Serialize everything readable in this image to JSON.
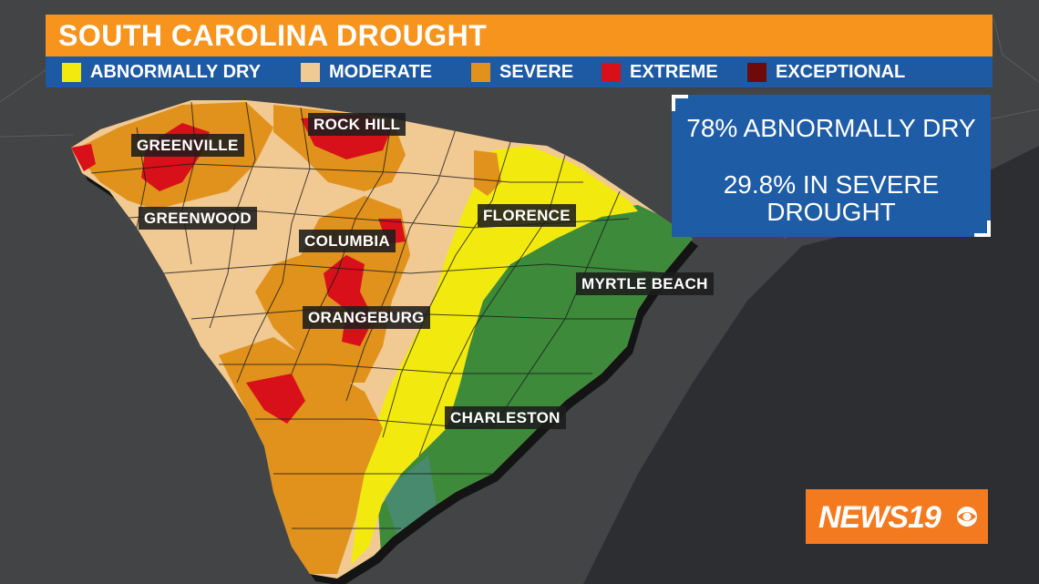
{
  "title": "SOUTH CAROLINA DROUGHT",
  "legend": [
    {
      "label": "ABNORMALLY DRY",
      "color": "#f2ea0f"
    },
    {
      "label": "MODERATE",
      "color": "#f1c992"
    },
    {
      "label": "SEVERE",
      "color": "#e0921c"
    },
    {
      "label": "EXTREME",
      "color": "#d8101a"
    },
    {
      "label": "EXCEPTIONAL",
      "color": "#6e0a0a"
    }
  ],
  "stats": {
    "line1": "78% ABNORMALLY DRY",
    "line2": "29.8% IN SEVERE",
    "line3": "DROUGHT"
  },
  "cities": {
    "rock_hill": "ROCK HILL",
    "greenville": "GREENVILLE",
    "greenwood": "GREENWOOD",
    "columbia": "COLUMBIA",
    "florence": "FLORENCE",
    "myrtle_beach": "MYRTLE BEACH",
    "orangeburg": "ORANGEBURG",
    "charleston": "CHARLESTON"
  },
  "logo": {
    "text": "NEWS19"
  },
  "colors": {
    "no_drought": "#3e8a3b",
    "background": "#3a3c3e",
    "ocean": "#2f3134",
    "title_bar": "#f7941d",
    "legend_bar": "#1d5aa3",
    "stats_box": "#1f5ca6",
    "logo_bg": "#f47a20"
  }
}
